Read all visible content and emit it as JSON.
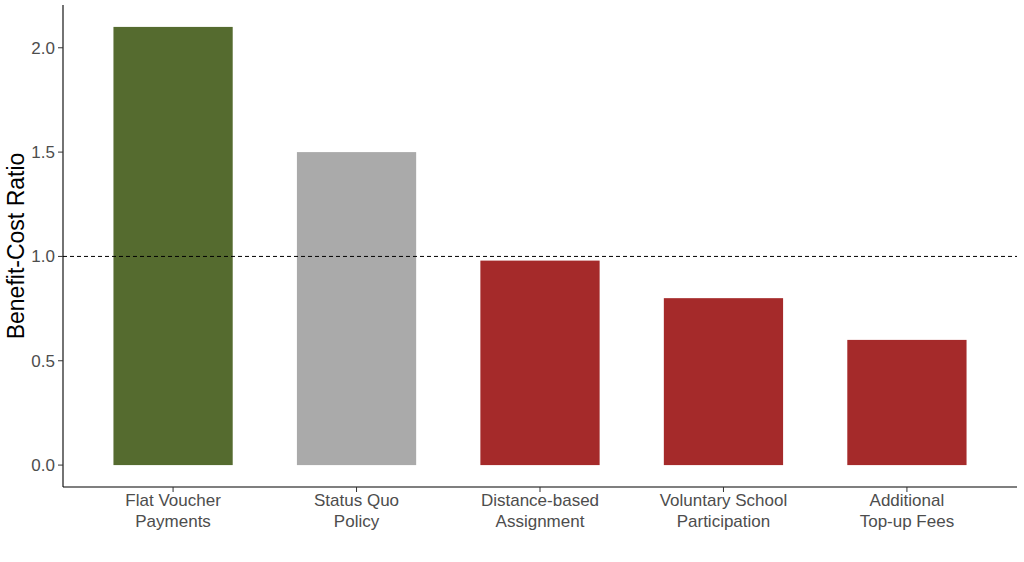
{
  "chart_data": {
    "type": "bar",
    "y_label": "Benefit-Cost Ratio",
    "categories": [
      "Flat Voucher\nPayments",
      "Status Quo\nPolicy",
      "Distance-based\nAssignment",
      "Voluntary School\nParticipation",
      "Additional\nTop-up Fees"
    ],
    "values": [
      2.1,
      1.5,
      0.98,
      0.8,
      0.6
    ],
    "colors": [
      "#556b2f",
      "#aaaaaa",
      "#a52a2a",
      "#a52a2a",
      "#a52a2a"
    ],
    "ylim": [
      -0.105,
      2.205
    ],
    "yticks": [
      {
        "value": 0,
        "label": "0.0"
      },
      {
        "value": 0.5,
        "label": "0.5"
      },
      {
        "value": 1,
        "label": "1.0"
      },
      {
        "value": 1.5,
        "label": "1.5"
      },
      {
        "value": 2,
        "label": "2.0"
      }
    ],
    "hline": 1,
    "grid": false
  }
}
